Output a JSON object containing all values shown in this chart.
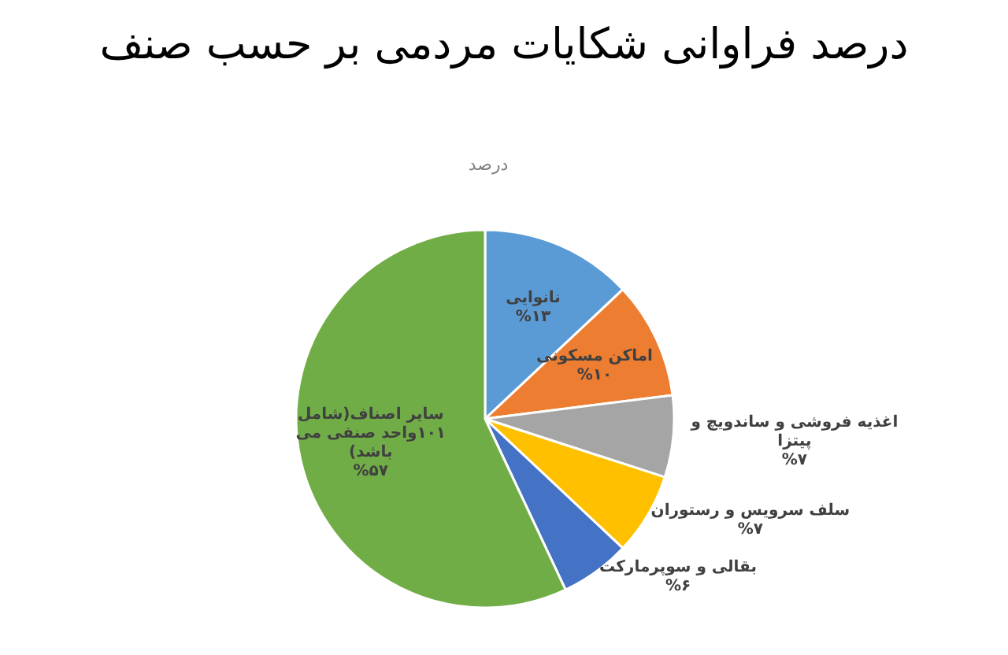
{
  "chart_data": {
    "type": "pie",
    "title": "درصد فراوانی شکایات مردمی بر حسب صنف",
    "subtitle": "درصد",
    "categories": [
      "نانوایی",
      "اماکن مسکونی",
      "اغذیه فروشی و ساندویچ و پیتزا",
      "سلف سرویس و رستوران",
      "بقالی و سوپرمارکت",
      "سایر اصناف(شامل ۱۰۱واحد صنفی می باشد)"
    ],
    "values": [
      13,
      10,
      7,
      7,
      6,
      57
    ],
    "colors": [
      "#5b9bd5",
      "#ed7d31",
      "#a5a5a5",
      "#ffc000",
      "#4472c4",
      "#70ad47"
    ],
    "value_labels": [
      "%۱۳",
      "%۱۰",
      "%۷",
      "%۷",
      "%۶",
      "%۵۷"
    ]
  }
}
